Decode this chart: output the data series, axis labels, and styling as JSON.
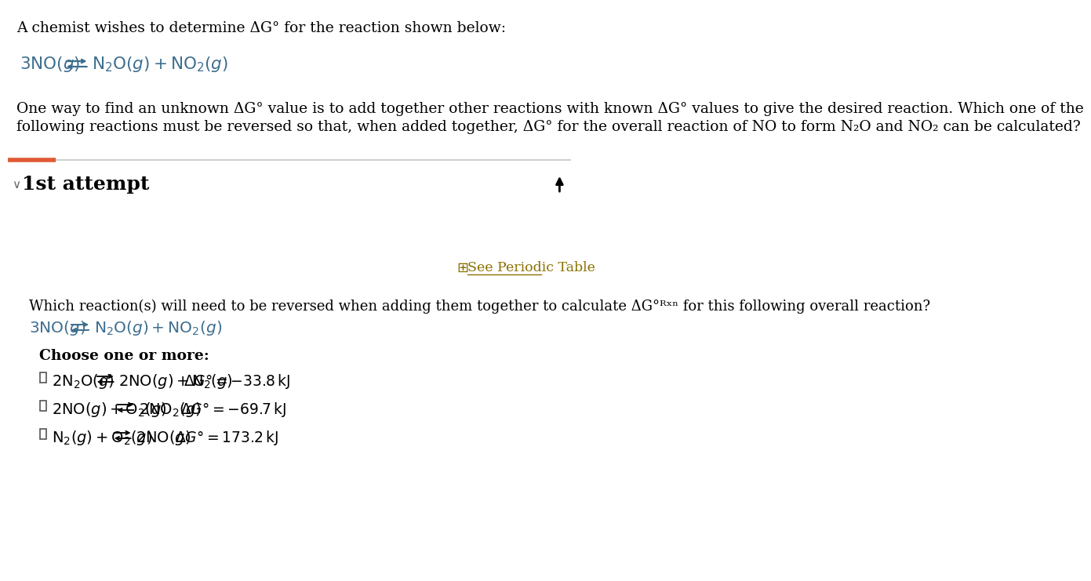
{
  "bg_color": "#ffffff",
  "text_color": "#000000",
  "teal_color": "#3d6e8f",
  "red_divider": "#e05a35",
  "gold_color": "#8B7000",
  "gray_line": "#d0d0d0",
  "gray_chevron": "#666666",
  "header_text": "A chemist wishes to determine ΔG° for the reaction shown below:",
  "para_line1": "One way to find an unknown ΔG° value is to add together other reactions with known ΔG° values to give the desired reaction. Which one of the",
  "para_line2": "following reactions must be reversed so that, when added together, ΔG° for the overall reaction of NO to form N₂O and NO₂ can be calculated?",
  "attempt_label": "1st attempt",
  "question_line": "Which reaction(s) will need to be reversed when adding them together to calculate ΔG°ᴿˣⁿ for this following overall reaction?",
  "choose_label": "Choose one or more:",
  "fs_body": 13.5,
  "fs_reaction_main": 15.5,
  "fs_reaction_q": 14.5,
  "fs_attempt": 18,
  "fs_choice": 14.0,
  "fs_pt": 12.5
}
